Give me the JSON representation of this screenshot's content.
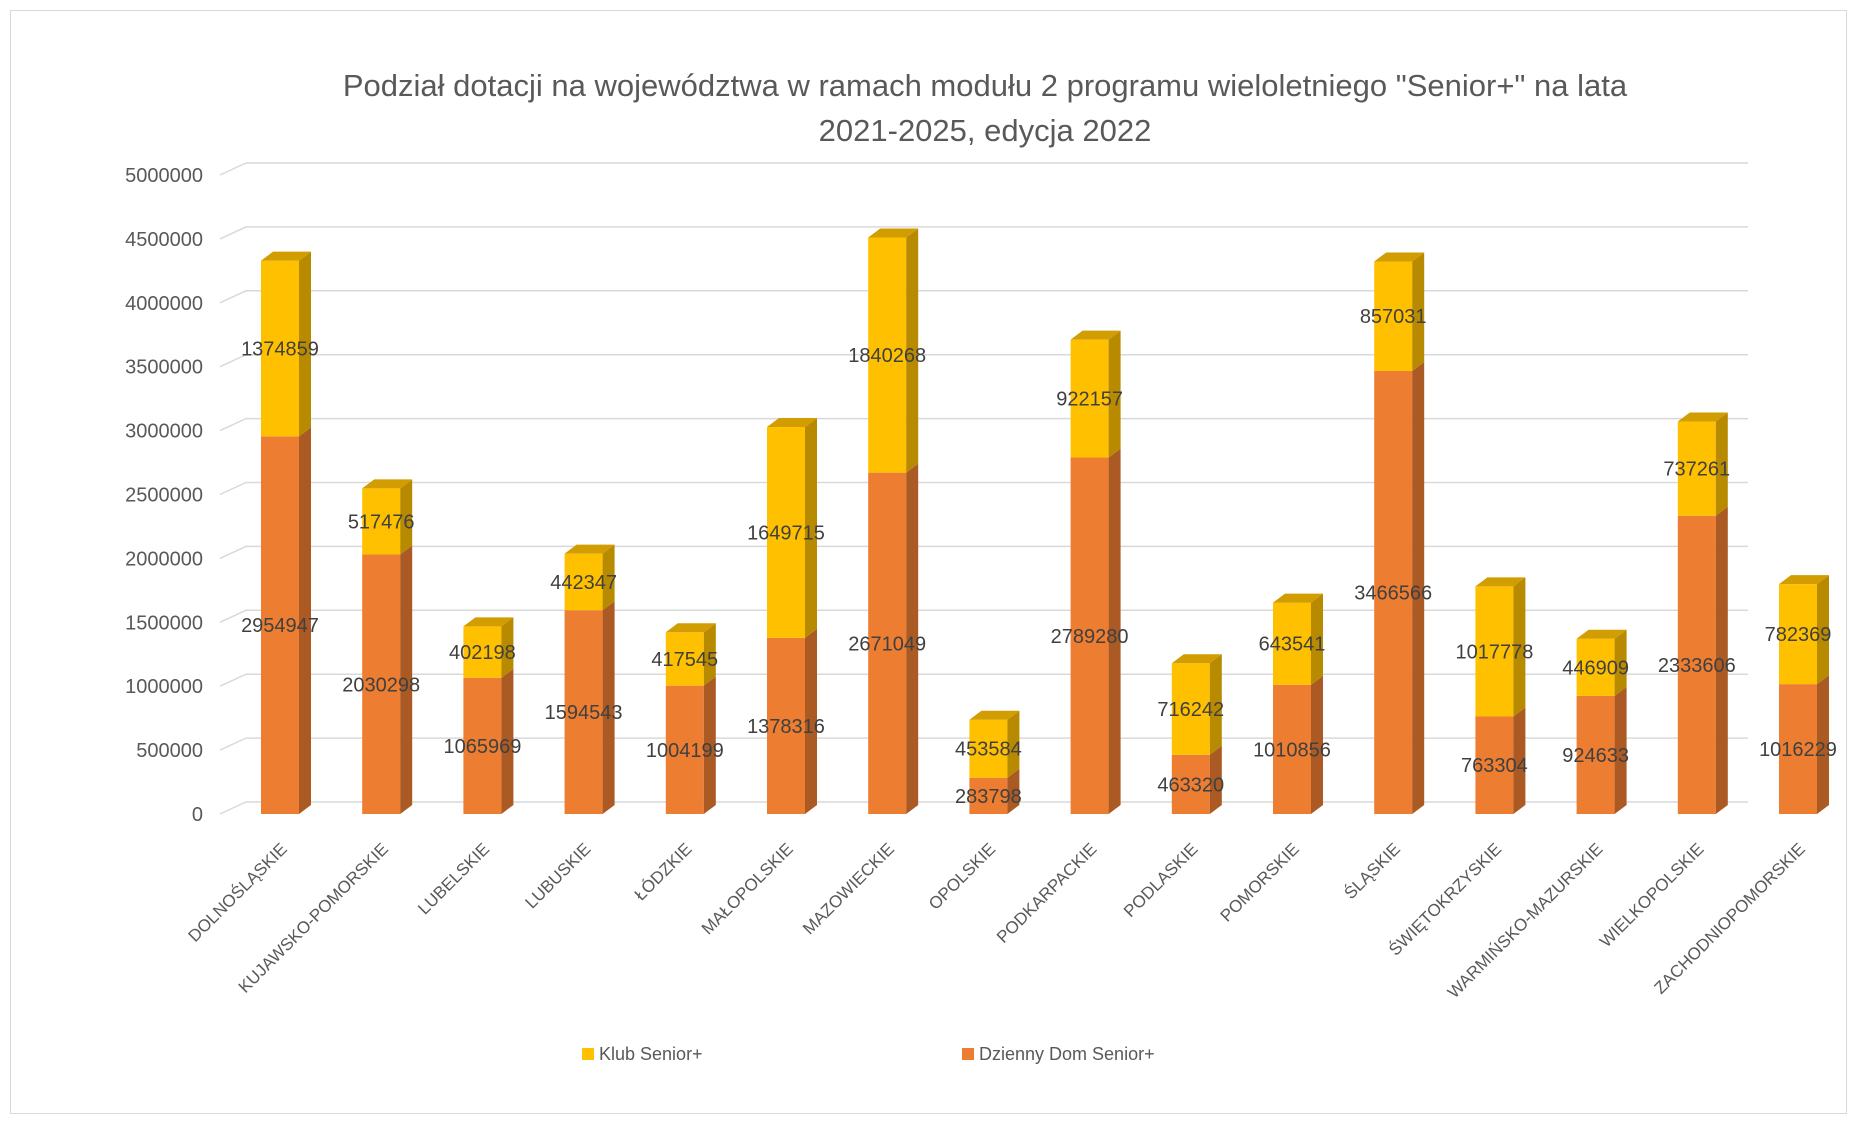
{
  "chart_data": {
    "type": "bar",
    "stacked": true,
    "style": "3d-column",
    "title_lines": [
      "Podział dotacji na województwa w ramach modułu 2 programu wieloletniego \"Senior+\" na lata",
      "2021-2025, edycja 2022"
    ],
    "xlabel": "",
    "ylabel": "",
    "ylim": [
      0,
      5000000
    ],
    "yticks": [
      "0",
      "500000",
      "1000000",
      "1500000",
      "2000000",
      "2500000",
      "3000000",
      "3500000",
      "4000000",
      "4500000",
      "5000000"
    ],
    "grid": true,
    "legend_position": "bottom",
    "categories": [
      "DOLNOŚLĄSKIE",
      "KUJAWSKO-POMORSKIE",
      "LUBELSKIE",
      "LUBUSKIE",
      "ŁÓDZKIE",
      "MAŁOPOLSKIE",
      "MAZOWIECKIE",
      "OPOLSKIE",
      "PODKARPACKIE",
      "PODLASKIE",
      "POMORSKIE",
      "ŚLĄSKIE",
      "ŚWIĘTOKRZYSKIE",
      "WARMIŃSKO-MAZURSKIE",
      "WIELKOPOLSKIE",
      "ZACHODNIOPOMORSKIE"
    ],
    "series": [
      {
        "name": "Dzienny Dom Senior+",
        "color": "#ed7d31",
        "values": [
          2954947,
          2030298,
          1065969,
          1594543,
          1004199,
          1378316,
          2671049,
          283798,
          2789280,
          463320,
          1010856,
          3466566,
          763304,
          924633,
          2333606,
          1016229
        ]
      },
      {
        "name": "Klub Senior+",
        "color": "#ffc000",
        "values": [
          1374859,
          517476,
          402198,
          442347,
          417545,
          1649715,
          1840268,
          453584,
          922157,
          716242,
          643541,
          857031,
          1017778,
          446909,
          737261,
          782369
        ]
      }
    ],
    "legend": [
      {
        "label": "Klub Senior+",
        "color": "#ffc000"
      },
      {
        "label": "Dzienny Dom Senior+",
        "color": "#ed7d31"
      }
    ]
  }
}
